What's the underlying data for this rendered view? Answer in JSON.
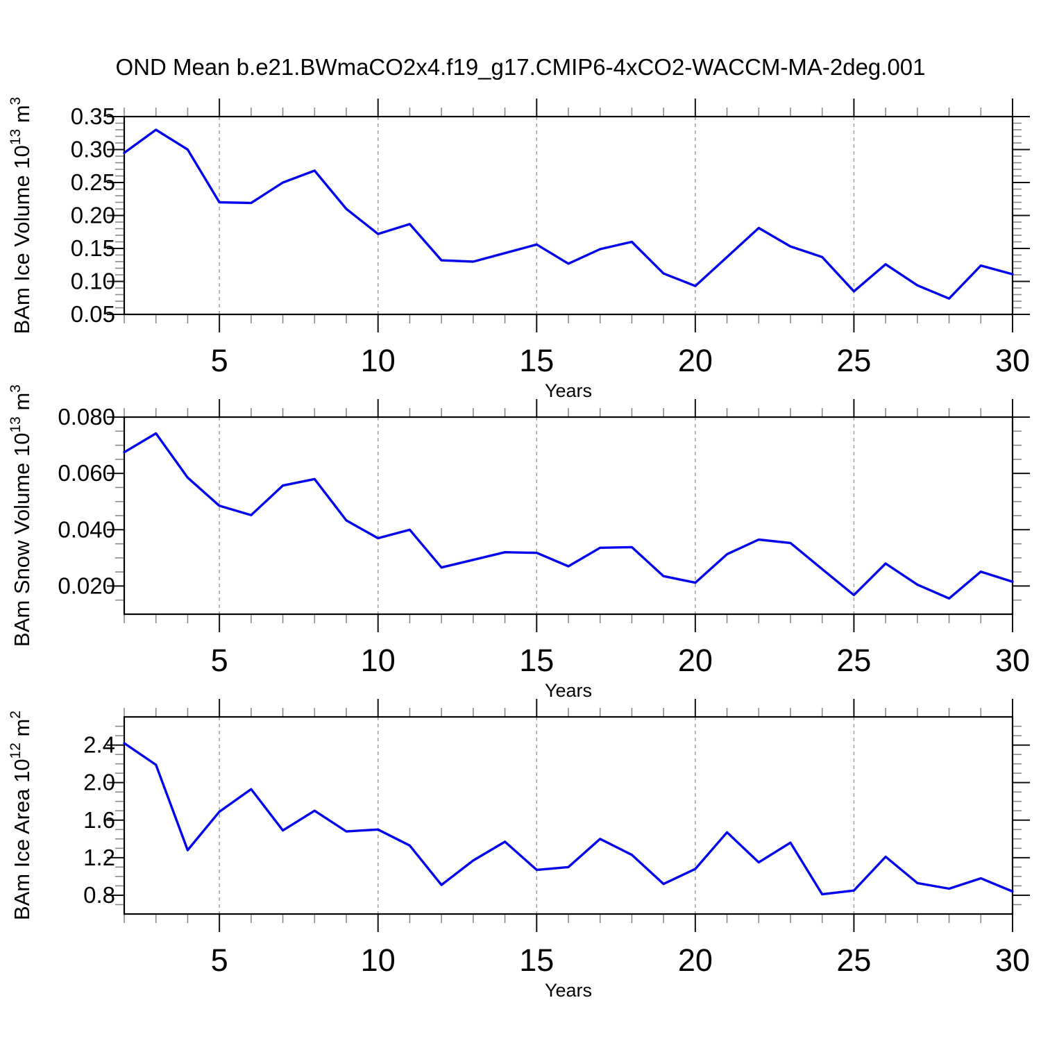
{
  "title": "OND Mean b.e21.BWmaCO2x4.f19_g17.CMIP6-4xCO2-WACCM-MA-2deg.001",
  "colors": {
    "line": "#0000ee",
    "frame": "#000000",
    "major_tick": "#111111",
    "minor_tick": "#888888",
    "grid": "#999999",
    "background": "#ffffff",
    "text": "#000000"
  },
  "chart_data": [
    {
      "type": "line",
      "name": "ice-volume",
      "xlabel": "Years",
      "ylabel": {
        "text": "BAm Ice Volume",
        "scale": "10",
        "scale_exp": "13",
        "unit": "m",
        "unit_exp": "3"
      },
      "xlim": [
        2,
        30
      ],
      "ylim": [
        0.05,
        0.35
      ],
      "xticks": [
        5,
        10,
        15,
        20,
        25,
        30
      ],
      "xtick_labels": [
        "5",
        "10",
        "15",
        "20",
        "25",
        "30"
      ],
      "xtick_minor_step": 1,
      "grid_x": [
        5,
        10,
        15,
        20,
        25
      ],
      "yticks": [
        0.05,
        0.1,
        0.15,
        0.2,
        0.25,
        0.3,
        0.35
      ],
      "ytick_labels": [
        "0.05",
        "0.10",
        "0.15",
        "0.20",
        "0.25",
        "0.30",
        "0.35"
      ],
      "ytick_minor_step": 0.01,
      "x": [
        2,
        3,
        4,
        5,
        6,
        7,
        8,
        9,
        10,
        11,
        12,
        13,
        14,
        15,
        16,
        17,
        18,
        19,
        20,
        21,
        22,
        23,
        24,
        25,
        26,
        27,
        28,
        29,
        30
      ],
      "values": [
        0.295,
        0.33,
        0.3,
        0.22,
        0.219,
        0.25,
        0.268,
        0.21,
        0.172,
        0.187,
        0.132,
        0.13,
        0.143,
        0.156,
        0.127,
        0.149,
        0.16,
        0.112,
        0.093,
        0.137,
        0.181,
        0.153,
        0.137,
        0.085,
        0.126,
        0.094,
        0.074,
        0.124,
        0.111
      ]
    },
    {
      "type": "line",
      "name": "snow-volume",
      "xlabel": "Years",
      "ylabel": {
        "text": "BAm Snow Volume",
        "scale": "10",
        "scale_exp": "13",
        "unit": "m",
        "unit_exp": "3"
      },
      "xlim": [
        2,
        30
      ],
      "ylim": [
        0.01,
        0.08
      ],
      "xticks": [
        5,
        10,
        15,
        20,
        25,
        30
      ],
      "xtick_labels": [
        "5",
        "10",
        "15",
        "20",
        "25",
        "30"
      ],
      "xtick_minor_step": 1,
      "grid_x": [
        5,
        10,
        15,
        20,
        25
      ],
      "yticks": [
        0.02,
        0.04,
        0.06,
        0.08
      ],
      "ytick_labels": [
        "0.020",
        "0.040",
        "0.060",
        "0.080"
      ],
      "ytick_minor_step": 0.005,
      "x": [
        2,
        3,
        4,
        5,
        6,
        7,
        8,
        9,
        10,
        11,
        12,
        13,
        14,
        15,
        16,
        17,
        18,
        19,
        20,
        21,
        22,
        23,
        24,
        25,
        26,
        27,
        28,
        29,
        30
      ],
      "values": [
        0.0675,
        0.0742,
        0.0585,
        0.0485,
        0.0452,
        0.0557,
        0.058,
        0.0433,
        0.037,
        0.04,
        0.0266,
        0.0293,
        0.032,
        0.0318,
        0.027,
        0.0336,
        0.0338,
        0.0235,
        0.0212,
        0.0313,
        0.0365,
        0.0353,
        0.026,
        0.0168,
        0.028,
        0.0205,
        0.0156,
        0.0251,
        0.0215
      ]
    },
    {
      "type": "line",
      "name": "ice-area",
      "xlabel": "Years",
      "ylabel": {
        "text": "BAm Ice Area",
        "scale": "10",
        "scale_exp": "12",
        "unit": "m",
        "unit_exp": "2"
      },
      "xlim": [
        2,
        30
      ],
      "ylim": [
        0.6,
        2.7
      ],
      "xticks": [
        5,
        10,
        15,
        20,
        25,
        30
      ],
      "xtick_labels": [
        "5",
        "10",
        "15",
        "20",
        "25",
        "30"
      ],
      "xtick_minor_step": 1,
      "grid_x": [
        5,
        10,
        15,
        20,
        25
      ],
      "yticks": [
        0.8,
        1.2,
        1.6,
        2.0,
        2.4
      ],
      "ytick_labels": [
        "0.8",
        "1.2",
        "1.6",
        "2.0",
        "2.4"
      ],
      "ytick_minor_step": 0.1,
      "x": [
        2,
        3,
        4,
        5,
        6,
        7,
        8,
        9,
        10,
        11,
        12,
        13,
        14,
        15,
        16,
        17,
        18,
        19,
        20,
        21,
        22,
        23,
        24,
        25,
        26,
        27,
        28,
        29,
        30
      ],
      "values": [
        2.42,
        2.19,
        1.28,
        1.69,
        1.93,
        1.49,
        1.7,
        1.48,
        1.5,
        1.33,
        0.91,
        1.17,
        1.37,
        1.07,
        1.1,
        1.4,
        1.23,
        0.92,
        1.08,
        1.47,
        1.15,
        1.36,
        0.81,
        0.85,
        1.21,
        0.93,
        0.87,
        0.98,
        0.84
      ]
    }
  ]
}
